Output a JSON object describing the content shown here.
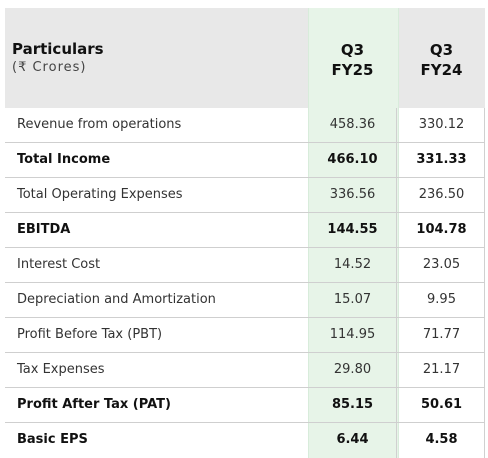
{
  "header": {
    "title": "Particulars",
    "subtitle": "(₹ Crores)",
    "columns": [
      {
        "line1": "Q3",
        "line2": "FY25"
      },
      {
        "line1": "Q3",
        "line2": "FY24"
      }
    ]
  },
  "rows": [
    {
      "label": "Revenue from operations",
      "q3fy25": "458.36",
      "q3fy24": "330.12",
      "bold": false
    },
    {
      "label": "Total Income",
      "q3fy25": "466.10",
      "q3fy24": "331.33",
      "bold": true
    },
    {
      "label": "Total Operating Expenses",
      "q3fy25": "336.56",
      "q3fy24": "236.50",
      "bold": false
    },
    {
      "label": "EBITDA",
      "q3fy25": "144.55",
      "q3fy24": "104.78",
      "bold": true
    },
    {
      "label": "Interest Cost",
      "q3fy25": "14.52",
      "q3fy24": "23.05",
      "bold": false
    },
    {
      "label": "Depreciation and Amortization",
      "q3fy25": "15.07",
      "q3fy24": "9.95",
      "bold": false
    },
    {
      "label": "Profit Before Tax (PBT)",
      "q3fy25": "114.95",
      "q3fy24": "71.77",
      "bold": false
    },
    {
      "label": "Tax Expenses",
      "q3fy25": "29.80",
      "q3fy24": "21.17",
      "bold": false
    },
    {
      "label": "Profit After Tax (PAT)",
      "q3fy25": "85.15",
      "q3fy24": "50.61",
      "bold": true
    },
    {
      "label": "Basic EPS",
      "q3fy25": "6.44",
      "q3fy24": "4.58",
      "bold": true
    }
  ]
}
